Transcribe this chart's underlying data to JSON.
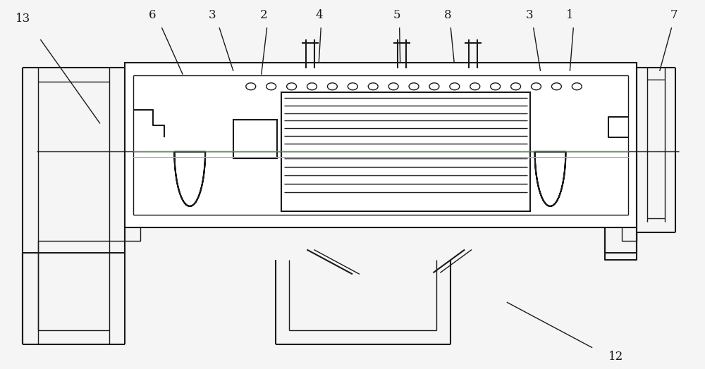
{
  "bg_color": "#f5f5f5",
  "line_color": "#1a1a1a",
  "fig_width": 10.0,
  "fig_height": 5.24,
  "dpi": 100
}
